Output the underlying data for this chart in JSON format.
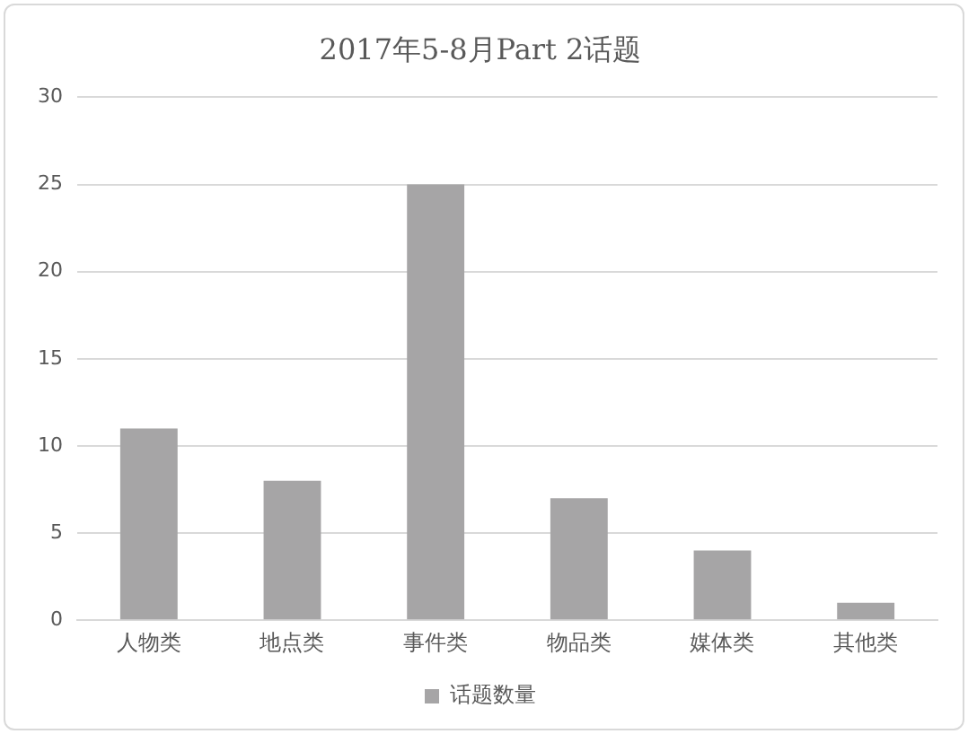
{
  "chart_data": {
    "type": "bar",
    "title": "2017年5-8月Part 2话题",
    "categories": [
      "人物类",
      "地点类",
      "事件类",
      "物品类",
      "媒体类",
      "其他类"
    ],
    "series": [
      {
        "name": "话题数量",
        "color": "#a6a5a6",
        "values": [
          11,
          8,
          25,
          7,
          4,
          1
        ]
      }
    ],
    "ylim": [
      0,
      30
    ],
    "yticks": [
      0,
      5,
      10,
      15,
      20,
      25,
      30
    ],
    "grid": "y",
    "legend": "bottom"
  }
}
